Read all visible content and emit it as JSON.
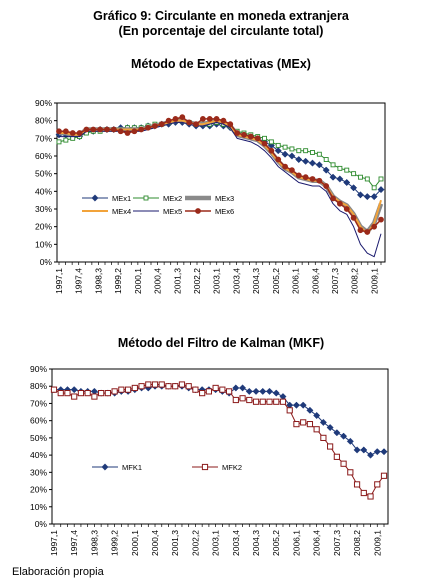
{
  "figure": {
    "title": "Gráfico 9: Circulante en moneda extranjera",
    "subtitle": "(En porcentaje del circulante total)",
    "source": "Elaboración propia"
  },
  "colors": {
    "MEx1": "#1f3a7a",
    "MEx2": "#2e8b2e",
    "MEx3": "#8a8a8a",
    "MEx4": "#f2a33a",
    "MEx5": "#1a1a6e",
    "MEx6": "#9b2a1a",
    "MFK1": "#1f3a7a",
    "MFK2": "#8b1a1a"
  },
  "chart_data": [
    {
      "type": "line",
      "title": "Método de Expectativas (MEx)",
      "xlabel": "",
      "ylabel": "",
      "ylim": [
        0,
        90
      ],
      "yticks": [
        "0%",
        "10%",
        "20%",
        "30%",
        "40%",
        "50%",
        "60%",
        "70%",
        "80%",
        "90%"
      ],
      "x_tick_labels": [
        "1997,1",
        "1997,4",
        "1998,3",
        "1999,2",
        "2000,1",
        "2000,4",
        "2001,3",
        "2002,2",
        "2003,1",
        "2003,4",
        "2004,3",
        "2005,2",
        "2006,1",
        "2006,4",
        "2007,3",
        "2008,2",
        "2009,1"
      ],
      "x_range": [
        "1997,1",
        "2009,2"
      ],
      "grid": false,
      "legend": "inside-lower-left",
      "series": [
        {
          "name": "MEx1",
          "values": [
            72,
            72,
            71,
            71,
            74,
            74,
            75,
            75,
            75,
            76,
            76,
            76,
            76,
            77,
            77,
            78,
            78,
            79,
            79,
            78,
            77,
            77,
            77,
            78,
            77,
            76,
            73,
            72,
            71,
            70,
            68,
            66,
            63,
            61,
            60,
            58,
            57,
            56,
            55,
            52,
            48,
            47,
            45,
            42,
            38,
            37,
            37,
            41
          ]
        },
        {
          "name": "MEx2",
          "values": [
            68,
            69,
            70,
            71,
            73,
            74,
            74,
            75,
            75,
            75,
            76,
            76,
            76,
            77,
            78,
            78,
            79,
            80,
            80,
            79,
            78,
            78,
            78,
            79,
            78,
            77,
            74,
            73,
            72,
            71,
            70,
            68,
            66,
            65,
            64,
            63,
            63,
            62,
            61,
            58,
            55,
            53,
            52,
            50,
            48,
            47,
            42,
            47
          ]
        },
        {
          "name": "MEx3",
          "values": [
            73,
            73,
            72,
            72,
            75,
            75,
            75,
            75,
            75,
            75,
            75,
            75,
            75,
            76,
            77,
            78,
            79,
            80,
            80,
            79,
            78,
            78,
            79,
            80,
            79,
            77,
            72,
            71,
            70,
            69,
            66,
            62,
            57,
            53,
            51,
            48,
            47,
            46,
            46,
            43,
            37,
            34,
            32,
            27,
            20,
            17,
            22,
            33
          ]
        },
        {
          "name": "MEx4",
          "values": [
            73,
            73,
            72,
            72,
            75,
            75,
            75,
            75,
            75,
            75,
            75,
            75,
            75,
            76,
            77,
            78,
            79,
            80,
            80,
            79,
            78,
            78,
            79,
            80,
            79,
            77,
            72,
            71,
            70,
            69,
            66,
            62,
            57,
            53,
            51,
            48,
            47,
            46,
            46,
            43,
            37,
            34,
            32,
            27,
            20,
            16,
            22,
            35
          ]
        },
        {
          "name": "MEx5",
          "values": [
            71,
            71,
            71,
            71,
            74,
            74,
            74,
            74,
            74,
            74,
            74,
            74,
            74,
            75,
            76,
            77,
            78,
            79,
            79,
            78,
            77,
            77,
            78,
            79,
            78,
            76,
            70,
            69,
            68,
            66,
            63,
            59,
            54,
            51,
            48,
            45,
            44,
            43,
            43,
            40,
            33,
            29,
            27,
            20,
            10,
            5,
            3,
            16
          ]
        },
        {
          "name": "MEx6",
          "values": [
            74,
            74,
            73,
            73,
            75,
            75,
            75,
            75,
            75,
            74,
            73,
            74,
            75,
            76,
            77,
            78,
            80,
            81,
            82,
            79,
            78,
            81,
            81,
            81,
            80,
            78,
            73,
            72,
            71,
            70,
            67,
            63,
            58,
            54,
            52,
            49,
            48,
            47,
            46,
            43,
            36,
            33,
            30,
            25,
            18,
            17,
            20,
            24
          ]
        }
      ]
    },
    {
      "type": "line",
      "title": "Método del Filtro de Kalman (MKF)",
      "xlabel": "",
      "ylabel": "",
      "ylim": [
        0,
        90
      ],
      "yticks": [
        "0%",
        "10%",
        "20%",
        "30%",
        "40%",
        "50%",
        "60%",
        "70%",
        "80%",
        "90%"
      ],
      "x_tick_labels": [
        "1997,1",
        "1997,4",
        "1998,3",
        "1999,2",
        "2000,1",
        "2000,4",
        "2001,3",
        "2002,2",
        "2003,1",
        "2003,4",
        "2004,3",
        "2005,2",
        "2006,1",
        "2006,4",
        "2007,3",
        "2008,2",
        "2009,1"
      ],
      "x_range": [
        "1997,1",
        "2009,2"
      ],
      "grid": false,
      "legend": "inside-lower-left",
      "series": [
        {
          "name": "MFK1",
          "values": [
            78,
            78,
            78,
            78,
            77,
            77,
            77,
            76,
            76,
            76,
            77,
            77,
            78,
            79,
            79,
            80,
            80,
            80,
            80,
            80,
            79,
            78,
            78,
            78,
            78,
            77,
            76,
            79,
            79,
            77,
            77,
            77,
            77,
            76,
            74,
            69,
            69,
            69,
            66,
            63,
            59,
            56,
            53,
            51,
            48,
            43,
            43,
            40,
            42,
            42
          ]
        },
        {
          "name": "MFK2",
          "values": [
            78,
            76,
            76,
            74,
            76,
            76,
            74,
            76,
            76,
            77,
            78,
            78,
            79,
            80,
            81,
            81,
            81,
            80,
            80,
            81,
            80,
            78,
            76,
            77,
            79,
            78,
            77,
            72,
            73,
            72,
            71,
            71,
            71,
            71,
            71,
            66,
            58,
            59,
            58,
            55,
            50,
            45,
            39,
            35,
            30,
            23,
            18,
            16,
            23,
            28
          ]
        }
      ]
    }
  ]
}
